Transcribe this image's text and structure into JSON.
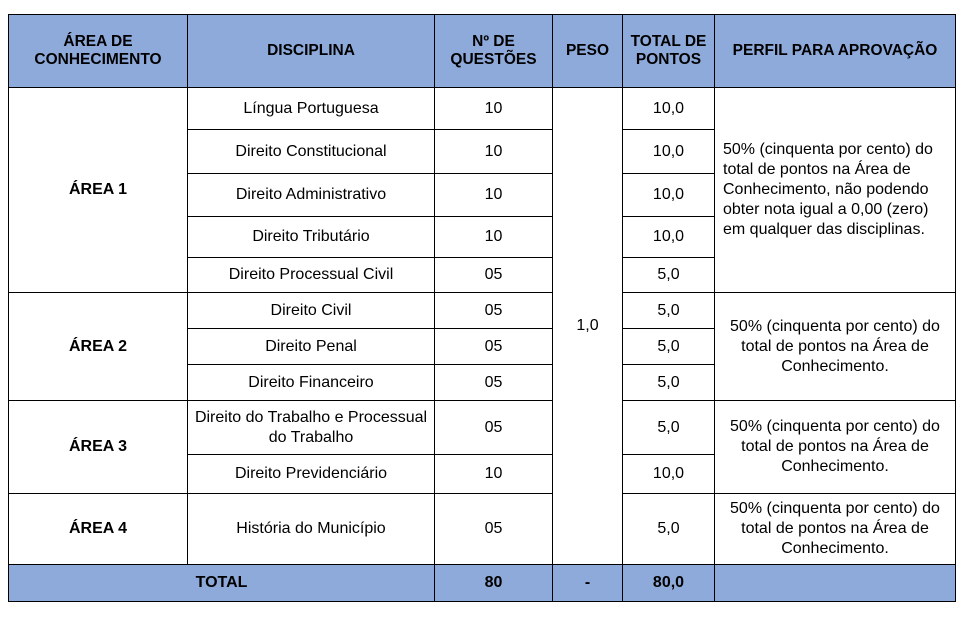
{
  "headers": [
    "ÁREA DE CONHECIMENTO",
    "DISCIPLINA",
    "Nº DE QUESTÕES",
    "PESO",
    "TOTAL DE PONTOS",
    "PERFIL PARA APROVAÇÃO"
  ],
  "peso": "1,0",
  "areas": [
    {
      "name": "ÁREA 1",
      "perfil": "50% (cinquenta por cento) do total de pontos na Área de Conhecimento, não podendo obter nota igual a 0,00 (zero) em qualquer das disciplinas.",
      "rows": [
        [
          "Língua Portuguesa",
          "10",
          "10,0"
        ],
        [
          "Direito Constitucional",
          "10",
          "10,0"
        ],
        [
          "Direito Administrativo",
          "10",
          "10,0"
        ],
        [
          "Direito Tributário",
          "10",
          "10,0"
        ],
        [
          "Direito Processual Civil",
          "05",
          "5,0"
        ]
      ]
    },
    {
      "name": "ÁREA 2",
      "perfil": "50% (cinquenta por cento) do total de pontos na Área de Conhecimento.",
      "rows": [
        [
          "Direito Civil",
          "05",
          "5,0"
        ],
        [
          "Direito Penal",
          "05",
          "5,0"
        ],
        [
          "Direito Financeiro",
          "05",
          "5,0"
        ]
      ]
    },
    {
      "name": "ÁREA 3",
      "perfil": "50% (cinquenta por cento) do total de pontos na Área de Conhecimento.",
      "rows": [
        [
          "Direito do Trabalho e Processual do Trabalho",
          "05",
          "5,0"
        ],
        [
          "Direito Previdenciário",
          "10",
          "10,0"
        ]
      ]
    },
    {
      "name": "ÁREA 4",
      "perfil": "50% (cinquenta por cento) do total de pontos na Área de Conhecimento.",
      "rows": [
        [
          "História do Município",
          "05",
          "5,0"
        ]
      ]
    }
  ],
  "total": {
    "label": "TOTAL",
    "questoes": "80",
    "peso": "-",
    "pontos": "80,0"
  }
}
